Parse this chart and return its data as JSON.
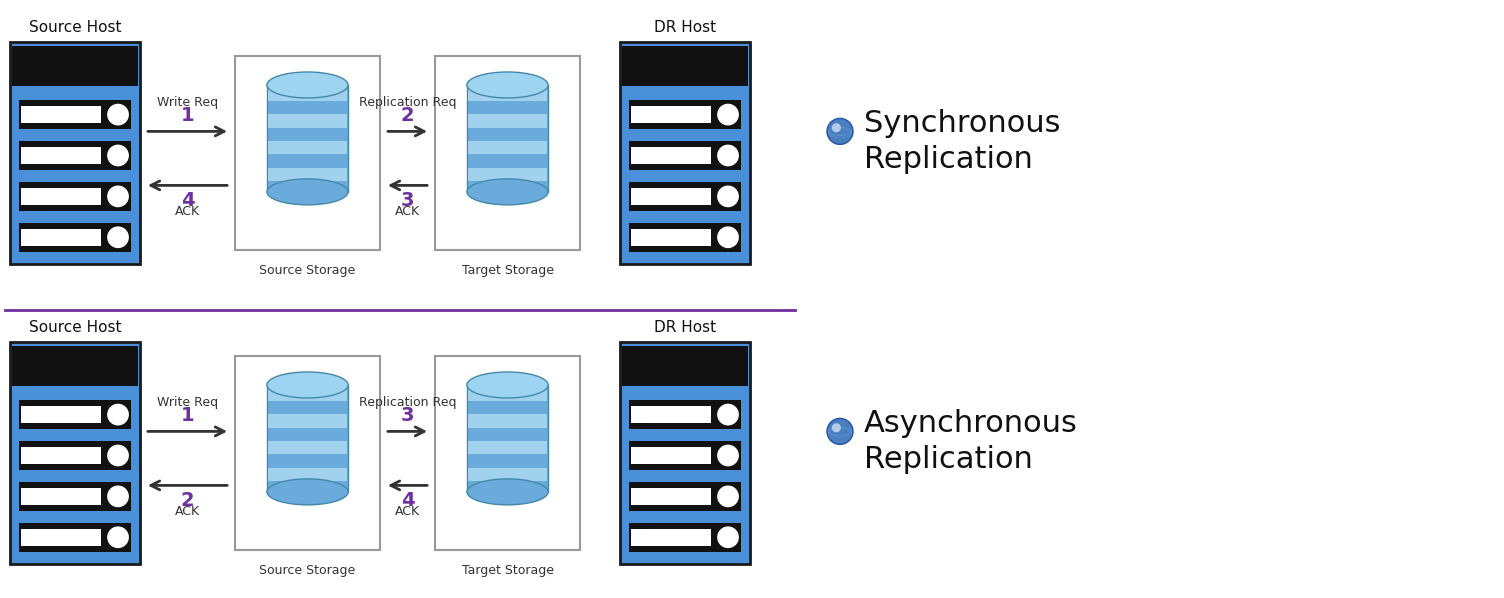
{
  "bg_color": "#ffffff",
  "divider_color": "#7030a0",
  "server_color": "#4a90d9",
  "server_dark": "#1a1a1a",
  "server_border": "#1a1a1a",
  "arrow_color": "#333333",
  "number_color": "#7030a0",
  "label_color": "#333333",
  "title_color": "#111111",
  "sync_label": "Synchronous\nReplication",
  "async_label": "Asynchronous\nReplication",
  "source_host": "Source Host",
  "dr_host": "DR Host",
  "source_storage": "Source Storage",
  "target_storage": "Target Storage",
  "write_req": "Write Req",
  "replication_req": "Replication Req",
  "ack": "ACK",
  "cyl_body": "#6aabdb",
  "cyl_top": "#9dd4ef",
  "cyl_stripe": "#b8e4f7",
  "cyl_edge": "#4488aa",
  "globe_color": "#4a7fbf",
  "globe_shine": "#7aacdf"
}
